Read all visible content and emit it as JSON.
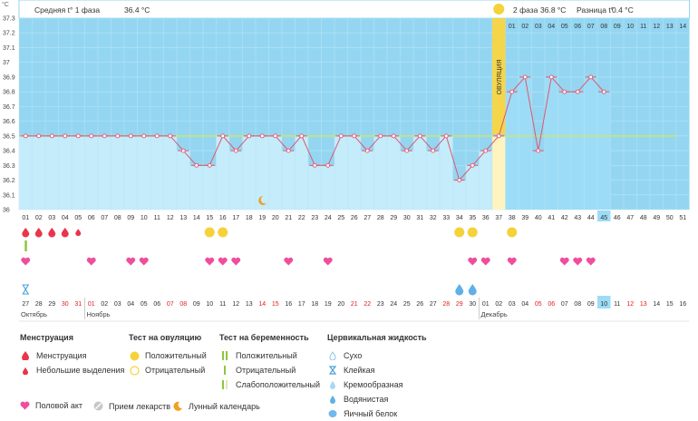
{
  "header": {
    "unit_label": "°C",
    "phase1_label": "Средняя t° 1 фаза",
    "phase1_value": "36.4 °C",
    "phase2_label": "2 фаза",
    "phase2_value": "36.8 °C",
    "diff_label": "Разница t°",
    "diff_value": "0.4 °C",
    "ovulation_label": "ОВУЛЯЦИЯ"
  },
  "chart_data": {
    "type": "line",
    "y_ticks": [
      "37.3",
      "37.2",
      "37.1",
      "37",
      "36.9",
      "36.8",
      "36.7",
      "36.6",
      "36.5",
      "36.4",
      "36.3",
      "36.2",
      "36.1",
      "36"
    ],
    "ylim": [
      36.0,
      37.3
    ],
    "cycle_days": [
      "01",
      "02",
      "03",
      "04",
      "05",
      "06",
      "07",
      "08",
      "09",
      "10",
      "11",
      "12",
      "13",
      "14",
      "15",
      "16",
      "17",
      "18",
      "19",
      "20",
      "21",
      "22",
      "23",
      "24",
      "25",
      "26",
      "27",
      "28",
      "29",
      "30",
      "31",
      "32",
      "33",
      "34",
      "35",
      "36",
      "37",
      "38",
      "39",
      "40",
      "41",
      "42",
      "43",
      "44",
      "45",
      "46",
      "47",
      "48",
      "49",
      "50",
      "51"
    ],
    "temperatures": [
      36.5,
      36.5,
      36.5,
      36.5,
      36.5,
      36.5,
      36.5,
      36.5,
      36.5,
      36.5,
      36.5,
      36.5,
      36.4,
      36.3,
      36.3,
      36.5,
      36.4,
      36.5,
      36.5,
      36.5,
      36.4,
      36.5,
      36.3,
      36.3,
      36.5,
      36.5,
      36.4,
      36.5,
      36.5,
      36.4,
      36.5,
      36.4,
      36.5,
      36.2,
      36.3,
      36.4,
      36.5,
      36.8,
      36.9,
      36.4,
      36.9,
      36.8,
      36.8,
      36.9,
      36.8
    ],
    "coverline": 36.5,
    "ovulation_day": 37,
    "current_day": 45,
    "phase2_axis": [
      "01",
      "02",
      "03",
      "04",
      "05",
      "06",
      "07",
      "08",
      "09",
      "10",
      "11",
      "12",
      "13",
      "14"
    ],
    "dates": [
      "27",
      "28",
      "29",
      "30",
      "31",
      "01",
      "02",
      "03",
      "04",
      "05",
      "06",
      "07",
      "08",
      "09",
      "10",
      "11",
      "12",
      "13",
      "14",
      "15",
      "16",
      "17",
      "18",
      "19",
      "20",
      "21",
      "22",
      "23",
      "24",
      "25",
      "26",
      "27",
      "28",
      "29",
      "30",
      "01",
      "02",
      "03",
      "04",
      "05",
      "06",
      "07",
      "08",
      "09",
      "10",
      "11",
      "12",
      "13",
      "14",
      "15",
      "16"
    ],
    "date_weekend_indexes": [
      3,
      4,
      5,
      11,
      12,
      18,
      19,
      25,
      26,
      32,
      33,
      39,
      40,
      46,
      47
    ],
    "months": [
      {
        "label": "Октябрь",
        "index": 0
      },
      {
        "label": "Ноябрь",
        "index": 5
      },
      {
        "label": "Декабрь",
        "index": 35
      }
    ],
    "menstruation_days": [
      1,
      2,
      3,
      4
    ],
    "spotting_days": [
      5
    ],
    "pregnancy_test_days": [
      1
    ],
    "ovulation_test_positive_days": [
      15,
      16,
      34,
      35,
      38
    ],
    "intercourse_days": [
      1,
      6,
      9,
      10,
      15,
      16,
      17,
      21,
      24,
      35,
      36,
      38,
      42,
      43,
      44
    ],
    "cervical_sticky_days": [
      1
    ],
    "cervical_watery_days": [
      34,
      35
    ],
    "moon_day": 19
  },
  "legend": {
    "menstruation": {
      "title": "Менструация",
      "items": [
        "Менструация",
        "Небольшие выделения"
      ]
    },
    "ovulation_test": {
      "title": "Тест на овуляцию",
      "items": [
        "Положительный",
        "Отрицательный"
      ]
    },
    "pregnancy_test": {
      "title": "Тест на беременность",
      "items": [
        "Положительный",
        "Отрицательный",
        "Слабоположительный"
      ]
    },
    "cervical": {
      "title": "Цервикальная жидкость",
      "items": [
        "Сухо",
        "Клейкая",
        "Кремообразная",
        "Водянистая",
        "Яичный белок"
      ]
    },
    "bottom": [
      "Половой акт",
      "Прием лекарств",
      "Лунный календарь"
    ]
  },
  "colors": {
    "phase1": "#c4ecfa",
    "phase2": "#9ddcf6",
    "grid_bg": "#94d6f2",
    "ovulation_band": "#fff4c0",
    "ovulation_label_bg": "#f5d54a",
    "line": "#e0556f",
    "coverline": "#d6e84a",
    "heart": "#f04e9c",
    "drop": "#e8364a",
    "yellow": "#f5d23a",
    "green": "#8ec63f",
    "weekend": "#e0201f"
  }
}
